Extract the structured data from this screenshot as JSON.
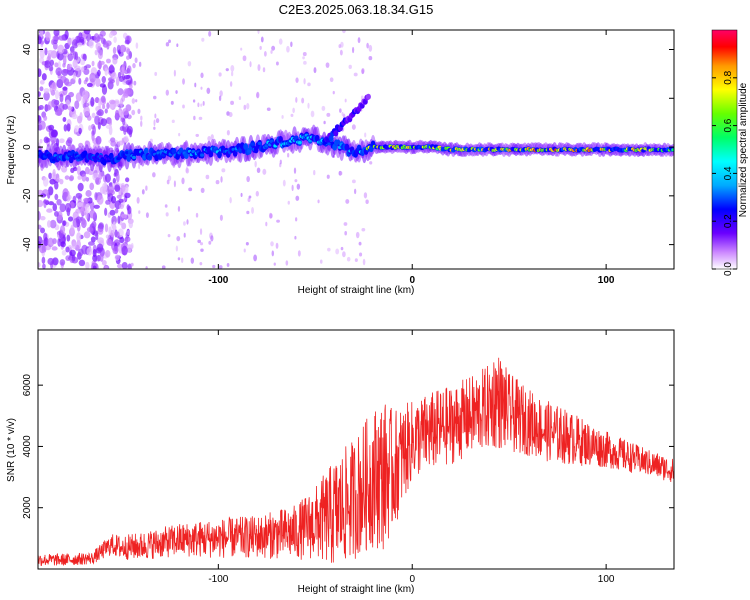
{
  "figure_title": "C2E3.2025.063.18.34.G15",
  "chart_data": [
    {
      "type": "heatmap",
      "title": "C2E3.2025.063.18.34.G15",
      "xlabel": "Height of straight line (km)",
      "ylabel": "Frequency (Hz)",
      "xlim": [
        -193,
        135
      ],
      "ylim": [
        -50,
        48
      ],
      "x_ticks": [
        -100,
        0,
        100
      ],
      "y_ticks": [
        -40,
        -20,
        0,
        20,
        40
      ],
      "colorbar": {
        "label": "Normalized spectral amplitude",
        "range": [
          0.0,
          1.0
        ],
        "ticks": [
          0.0,
          0.2,
          0.4,
          0.6,
          0.8
        ],
        "colormap": [
          "#ffffff",
          "#cc88ff",
          "#6a00ff",
          "#0000ff",
          "#00aaff",
          "#00ffff",
          "#00ff66",
          "#66ff00",
          "#ffff00",
          "#ff9900",
          "#ff0000",
          "#ff0066"
        ]
      },
      "ridge": {
        "description_points_x": [
          -190,
          -170,
          -160,
          -140,
          -120,
          -100,
          -80,
          -60,
          -50,
          -40,
          -30,
          -20,
          -10,
          0,
          10,
          20,
          40,
          60,
          80,
          100,
          120,
          135
        ],
        "frequency_hz": [
          -4,
          -4,
          -5,
          -3,
          -3,
          -2,
          0,
          3,
          4,
          1,
          -2,
          0,
          0,
          0,
          0,
          -1,
          -1,
          -1,
          -1,
          -1,
          -1,
          -1
        ],
        "amplitude": [
          0.35,
          0.3,
          0.25,
          0.35,
          0.35,
          0.4,
          0.4,
          0.45,
          0.45,
          0.4,
          0.4,
          0.85,
          0.8,
          0.85,
          0.8,
          0.85,
          0.85,
          0.9,
          0.9,
          0.9,
          0.85,
          0.7
        ]
      },
      "secondary_branch": {
        "x": [
          -45,
          -40,
          -35,
          -30,
          -25,
          -22
        ],
        "frequency_hz": [
          2,
          6,
          10,
          14,
          18,
          22
        ],
        "amplitude": [
          0.35,
          0.3,
          0.25,
          0.25,
          0.2,
          0.2
        ]
      },
      "noise_band_x": [
        -193,
        -155
      ]
    },
    {
      "type": "line",
      "xlabel": "Height of straight line (km)",
      "ylabel": "SNR (10 * v/v)",
      "xlim": [
        -193,
        135
      ],
      "ylim": [
        0,
        7800
      ],
      "x_ticks": [
        -100,
        0,
        100
      ],
      "y_ticks": [
        2000,
        4000,
        6000
      ],
      "color": "#ee2222",
      "envelope": {
        "x": [
          -193,
          -180,
          -165,
          -155,
          -150,
          -140,
          -120,
          -100,
          -80,
          -60,
          -50,
          -40,
          -30,
          -20,
          -15,
          -10,
          0,
          10,
          20,
          30,
          40,
          43,
          50,
          60,
          70,
          80,
          100,
          120,
          135
        ],
        "mean": [
          300,
          300,
          350,
          800,
          700,
          750,
          950,
          1000,
          1050,
          1200,
          1500,
          1800,
          2300,
          3000,
          3100,
          3200,
          4200,
          4500,
          4700,
          5000,
          5300,
          5600,
          5100,
          4800,
          4500,
          4300,
          3900,
          3500,
          3200
        ],
        "spread": [
          200,
          200,
          200,
          350,
          400,
          450,
          550,
          650,
          700,
          900,
          1200,
          1800,
          2000,
          2300,
          2500,
          2000,
          1300,
          1300,
          1300,
          1300,
          1400,
          1700,
          1300,
          1100,
          1000,
          900,
          600,
          450,
          400
        ]
      }
    }
  ]
}
